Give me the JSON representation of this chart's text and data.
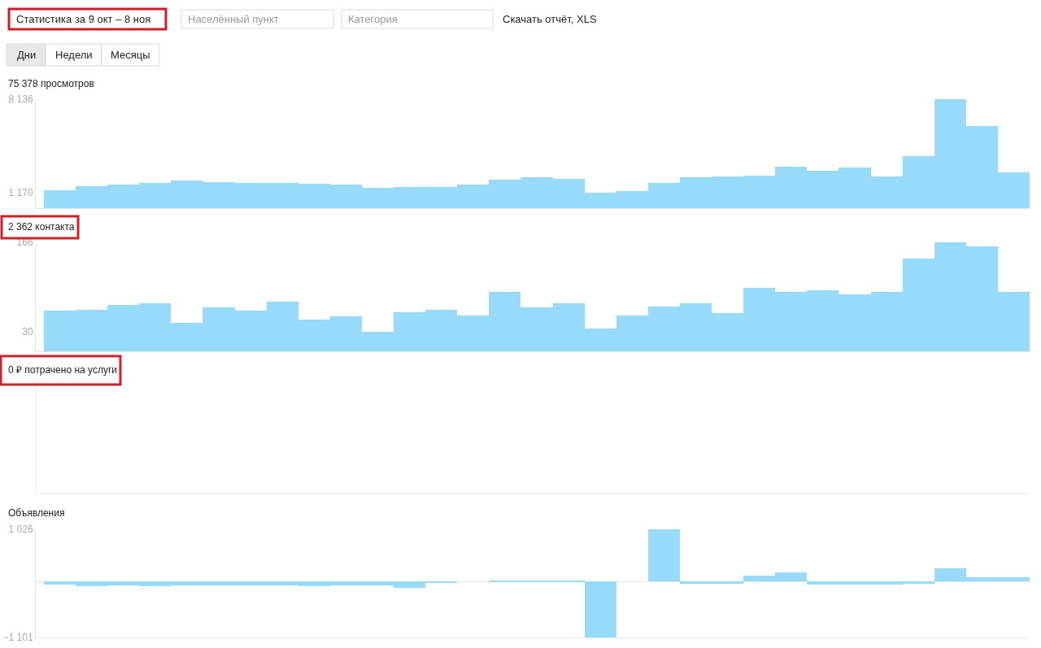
{
  "chart_data": [
    {
      "type": "bar",
      "title": "75 378 просмотров",
      "annotations": [
        "Статистика за 9 окт – 8 ноя",
        "Населённый пункт",
        "Категория",
        "Скачать отчёт, XLS",
        "Дни",
        "Недели",
        "Месяцы"
      ],
      "categories": [
        null,
        null,
        null,
        null,
        null,
        null,
        null,
        null,
        null,
        null,
        null,
        null,
        null,
        null,
        null,
        null,
        null,
        null,
        null,
        null,
        null,
        null,
        null,
        null,
        null,
        null,
        null,
        null,
        null,
        null,
        null
      ],
      "values": [
        1350,
        1650,
        1750,
        1900,
        2050,
        1950,
        1900,
        1900,
        1800,
        1750,
        1500,
        1600,
        1600,
        1750,
        2150,
        2300,
        2200,
        1170,
        1300,
        1900,
        2300,
        2350,
        2450,
        3100,
        2800,
        3050,
        2350,
        3900,
        8136,
        6150,
        2650
      ],
      "color": "#97daf9",
      "ylim": [
        0,
        8136
      ],
      "yticks": [
        {
          "value": 1170,
          "label": "1 170"
        },
        {
          "value": 8136,
          "label": "8 136"
        }
      ],
      "tick_labels": "y"
    },
    {
      "type": "bar",
      "title": "2 362 контакта",
      "categories": [
        null,
        null,
        null,
        null,
        null,
        null,
        null,
        null,
        null,
        null,
        null,
        null,
        null,
        null,
        null,
        null,
        null,
        null,
        null,
        null,
        null,
        null,
        null,
        null,
        null,
        null,
        null,
        null,
        null,
        null,
        null
      ],
      "values": [
        62,
        63,
        71,
        73,
        43,
        67,
        62,
        76,
        48,
        53,
        30,
        59,
        63,
        55,
        90,
        67,
        73,
        35,
        55,
        68,
        73,
        58,
        97,
        90,
        93,
        87,
        90,
        141,
        166,
        160,
        90
      ],
      "color": "#97daf9",
      "ylim": [
        0,
        166
      ],
      "yticks": [
        30,
        166
      ],
      "tick_labels": "y"
    },
    {
      "type": "other",
      "title": "0 ₽ потрачено на услуги"
    },
    {
      "type": "bar",
      "title": "Объявления",
      "categories": [
        null,
        null,
        null,
        null,
        null,
        null,
        null,
        null,
        null,
        null,
        null,
        null,
        null,
        null,
        null,
        null,
        null,
        null,
        null,
        null,
        null,
        null,
        null,
        null,
        null,
        null,
        null,
        null,
        null,
        null,
        null
      ],
      "values": [
        -60,
        -100,
        -80,
        -90,
        -80,
        -80,
        -80,
        -80,
        -100,
        -80,
        -80,
        -120,
        -20,
        0,
        20,
        20,
        20,
        -1100,
        0,
        1020,
        -50,
        -50,
        120,
        180,
        -60,
        -60,
        -60,
        -40,
        260,
        80,
        80
      ],
      "color": "#97daf9",
      "ylim": [
        -1101,
        1026
      ],
      "yticks": [
        {
          "value": -1101,
          "label": "−1 101"
        },
        {
          "value": 1026,
          "label": "1 026"
        }
      ],
      "tick_labels": "y"
    }
  ]
}
